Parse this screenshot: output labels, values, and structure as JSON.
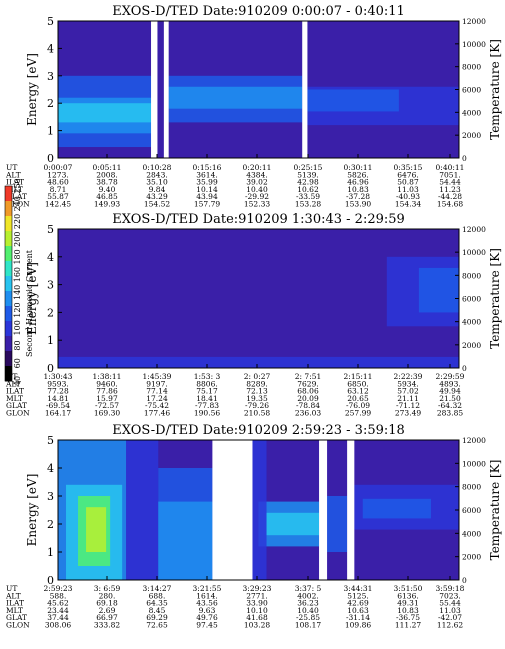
{
  "chart_data": {
    "type": "heatmap",
    "colorbar": {
      "label": "Second Harmonic Current",
      "ticks": [
        "40",
        "60",
        "80",
        "100",
        "120",
        "140",
        "160",
        "180",
        "200",
        "220",
        "240",
        "250"
      ],
      "colors": [
        "#000000",
        "#2a0a5e",
        "#3a1fa8",
        "#2b36d9",
        "#1f5be8",
        "#1f8ff0",
        "#28c4f0",
        "#30e6c8",
        "#52f070",
        "#b8f030",
        "#f0e628",
        "#f09a28",
        "#f03a28"
      ]
    },
    "panels": [
      {
        "title": "EXOS-D/TED   Date:910209  0:00:07 - 0:40:11",
        "ylabel": "Energy [eV]",
        "y2label": "Temperature [K]",
        "ylim": [
          0,
          5
        ],
        "y2lim": [
          0,
          12000
        ],
        "yticks": [
          "0",
          "1",
          "2",
          "3",
          "4",
          "5"
        ],
        "y2ticks": [
          "0",
          "2000",
          "4000",
          "6000",
          "8000",
          "10000",
          "12000"
        ],
        "background": "#3a1fa8",
        "gaps": [
          [
            0.232,
            0.248
          ],
          [
            0.264,
            0.276
          ],
          [
            0.609,
            0.622
          ]
        ],
        "bands": [
          {
            "x": [
              0.0,
              0.232
            ],
            "y": [
              0.4,
              3.0
            ],
            "color": "#1f5be8"
          },
          {
            "x": [
              0.0,
              0.232
            ],
            "y": [
              0.9,
              2.2
            ],
            "color": "#1f8ff0"
          },
          {
            "x": [
              0.0,
              0.232
            ],
            "y": [
              1.3,
              2.0
            ],
            "color": "#28c4f0"
          },
          {
            "x": [
              0.276,
              0.609
            ],
            "y": [
              1.3,
              3.0
            ],
            "color": "#1f5be8"
          },
          {
            "x": [
              0.276,
              0.609
            ],
            "y": [
              1.8,
              2.6
            ],
            "color": "#1f8ff0"
          },
          {
            "x": [
              0.622,
              1.0
            ],
            "y": [
              1.2,
              2.6
            ],
            "color": "#2b36d9"
          },
          {
            "x": [
              0.622,
              0.85
            ],
            "y": [
              1.7,
              2.5
            ],
            "color": "#1f5be8"
          }
        ],
        "time_axis": {
          "rows": [
            {
              "label": "UT",
              "values": [
                "0:00:07",
                "0:05:11",
                "0:10:28",
                "0:15:16",
                "0:20:11",
                "0:25:15",
                "0:30:11",
                "0:35:15",
                "0:40:11"
              ]
            },
            {
              "label": "ALT",
              "values": [
                "1273.",
                "2008.",
                "2843.",
                "3614.",
                "4384.",
                "5139.",
                "5826.",
                "6476.",
                "7051."
              ]
            },
            {
              "label": "ILAT",
              "values": [
                "48.60",
                "38.78",
                "35.10",
                "35.99",
                "39.02",
                "42.98",
                "46.96",
                "50.87",
                "54.44"
              ]
            },
            {
              "label": "MLT",
              "values": [
                "8.71",
                "9.40",
                "9.84",
                "10.14",
                "10.40",
                "10.62",
                "10.83",
                "11.03",
                "11.23"
              ]
            },
            {
              "label": "GLAT",
              "values": [
                "55.87",
                "46.85",
                "43.29",
                "43.94",
                "-29.92",
                "-33.59",
                "-37.28",
                "-40.93",
                "-44.28"
              ]
            },
            {
              "label": "GLON",
              "values": [
                "142.45",
                "149.93",
                "154.52",
                "157.79",
                "152.33",
                "153.28",
                "153.90",
                "154.34",
                "154.68"
              ]
            }
          ]
        }
      },
      {
        "title": "EXOS-D/TED   Date:910209  1:30:43 - 2:29:59",
        "ylabel": "Energy [eV]",
        "y2label": "Temperature [K]",
        "ylim": [
          0,
          5
        ],
        "y2lim": [
          0,
          12000
        ],
        "yticks": [
          "0",
          "1",
          "2",
          "3",
          "4",
          "5"
        ],
        "y2ticks": [
          "0",
          "2000",
          "4000",
          "6000",
          "8000",
          "10000",
          "12000"
        ],
        "background": "#3a1fa8",
        "gaps": [],
        "bands": [
          {
            "x": [
              0.0,
              1.0
            ],
            "y": [
              0.0,
              0.4
            ],
            "color": "#2b36d9"
          },
          {
            "x": [
              0.82,
              1.0
            ],
            "y": [
              1.5,
              4.0
            ],
            "color": "#2b36d9"
          },
          {
            "x": [
              0.9,
              1.0
            ],
            "y": [
              2.0,
              3.6
            ],
            "color": "#1f5be8"
          }
        ],
        "time_axis": {
          "rows": [
            {
              "label": "UT",
              "values": [
                "1:30:43",
                "1:38:11",
                "1:45:39",
                "1:53: 3",
                "2: 0:27",
                "2: 7:51",
                "2:15:11",
                "2:22:39",
                "2:29:59"
              ]
            },
            {
              "label": "ALT",
              "values": [
                "9593.",
                "9460.",
                "9197.",
                "8806.",
                "8289.",
                "7629.",
                "6850.",
                "5934.",
                "4893."
              ]
            },
            {
              "label": "ILAT",
              "values": [
                "77.28",
                "77.86",
                "77.14",
                "75.17",
                "72.13",
                "68.06",
                "63.12",
                "57.02",
                "49.94"
              ]
            },
            {
              "label": "MLT",
              "values": [
                "14.81",
                "15.97",
                "17.24",
                "18.41",
                "19.35",
                "20.09",
                "20.65",
                "21.11",
                "21.50"
              ]
            },
            {
              "label": "GLAT",
              "values": [
                "-69.54",
                "-72.57",
                "-75.42",
                "-77.83",
                "-79.26",
                "-78.84",
                "-76.09",
                "-71.12",
                "-64.32"
              ]
            },
            {
              "label": "GLON",
              "values": [
                "164.17",
                "169.30",
                "177.46",
                "190.56",
                "210.58",
                "236.03",
                "257.99",
                "273.49",
                "283.85"
              ]
            }
          ]
        }
      },
      {
        "title": "EXOS-D/TED   Date:910209  2:59:23 - 3:59:18",
        "ylabel": "Energy [eV]",
        "y2label": "Temperature [K]",
        "ylim": [
          0,
          5
        ],
        "y2lim": [
          0,
          12000
        ],
        "yticks": [
          "0",
          "1",
          "2",
          "3",
          "4",
          "5"
        ],
        "y2ticks": [
          "0",
          "2000",
          "4000",
          "6000",
          "8000",
          "10000",
          "12000"
        ],
        "background": "#3a1fa8",
        "gaps": [
          [
            0.385,
            0.485
          ],
          [
            0.651,
            0.671
          ],
          [
            0.721,
            0.739
          ]
        ],
        "bands": [
          {
            "x": [
              0.0,
              0.17
            ],
            "y": [
              0.0,
              5.0
            ],
            "color": "#1f8ff0"
          },
          {
            "x": [
              0.02,
              0.16
            ],
            "y": [
              0.0,
              3.4
            ],
            "color": "#28c4f0"
          },
          {
            "x": [
              0.05,
              0.13
            ],
            "y": [
              0.5,
              3.0
            ],
            "color": "#52f070"
          },
          {
            "x": [
              0.07,
              0.12
            ],
            "y": [
              1.0,
              2.6
            ],
            "color": "#b8f030"
          },
          {
            "x": [
              0.17,
              0.25
            ],
            "y": [
              0.0,
              5.0
            ],
            "color": "#2b36d9"
          },
          {
            "x": [
              0.25,
              0.385
            ],
            "y": [
              0.0,
              4.0
            ],
            "color": "#1f5be8"
          },
          {
            "x": [
              0.25,
              0.385
            ],
            "y": [
              0.0,
              2.8
            ],
            "color": "#1f8ff0"
          },
          {
            "x": [
              0.5,
              0.651
            ],
            "y": [
              1.2,
              2.8
            ],
            "color": "#1f8ff0"
          },
          {
            "x": [
              0.52,
              0.651
            ],
            "y": [
              1.6,
              2.4
            ],
            "color": "#28c4f0"
          },
          {
            "x": [
              0.485,
              0.52
            ],
            "y": [
              0.0,
              5.0
            ],
            "color": "#2b36d9"
          },
          {
            "x": [
              0.671,
              0.721
            ],
            "y": [
              1.0,
              3.0
            ],
            "color": "#1f5be8"
          },
          {
            "x": [
              0.739,
              1.0
            ],
            "y": [
              1.8,
              3.4
            ],
            "color": "#2b36d9"
          },
          {
            "x": [
              0.76,
              0.93
            ],
            "y": [
              2.2,
              2.9
            ],
            "color": "#1f5be8"
          }
        ],
        "time_axis": {
          "rows": [
            {
              "label": "UT",
              "values": [
                "2:59:23",
                "3: 6:59",
                "3:14:27",
                "3:21:55",
                "3:29:23",
                "3:37: 5",
                "3:44:31",
                "3:51:50",
                "3:59:18"
              ]
            },
            {
              "label": "ALT",
              "values": [
                "588.",
                "280.",
                "688.",
                "1614.",
                "2771.",
                "4002.",
                "5125.",
                "6136.",
                "7023."
              ]
            },
            {
              "label": "ILAT",
              "values": [
                "45.62",
                "69.18",
                "64.35",
                "43.56",
                "33.90",
                "36.23",
                "42.69",
                "49.31",
                "55.44"
              ]
            },
            {
              "label": "MLT",
              "values": [
                "23.44",
                "2.69",
                "8.45",
                "9.63",
                "10.10",
                "10.40",
                "10.63",
                "10.83",
                "11.03"
              ]
            },
            {
              "label": "GLAT",
              "values": [
                "37.44",
                "66.97",
                "69.29",
                "49.76",
                "41.68",
                "-25.85",
                "-31.14",
                "-36.75",
                "-42.07"
              ]
            },
            {
              "label": "GLON",
              "values": [
                "308.06",
                "333.82",
                "72.65",
                "97.45",
                "103.28",
                "108.17",
                "109.86",
                "111.27",
                "112.62"
              ]
            }
          ]
        }
      }
    ]
  }
}
